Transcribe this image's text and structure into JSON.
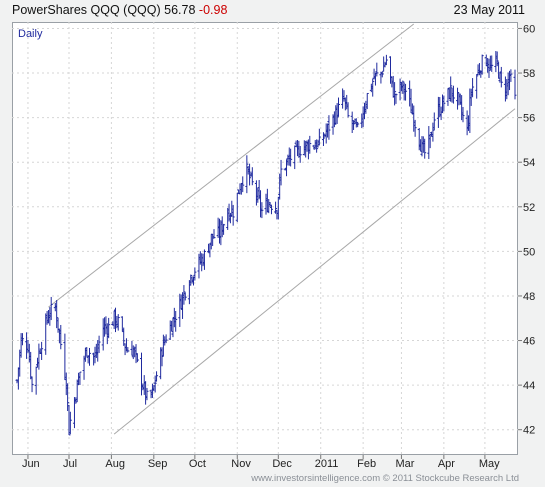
{
  "header": {
    "name": "PowerShares QQQ (QQQ)",
    "last": "56.78",
    "change": "-0.98",
    "date": "23 May 2011"
  },
  "periodicity": "Daily",
  "footer": {
    "site": "www.investorsintelligence.com",
    "copyright": "© 2011 Stockcube Research Ltd"
  },
  "colors": {
    "bars": "#1f2a9e",
    "channel": "#a8a8a8",
    "grid": "#d6d6d6",
    "change_negative": "#cc0000"
  },
  "chart_data": {
    "type": "ohlc",
    "title": "PowerShares QQQ (QQQ)",
    "ylim": [
      41,
      60.2
    ],
    "yticks": [
      42,
      44,
      46,
      48,
      50,
      52,
      54,
      56,
      58,
      60
    ],
    "xticks": [
      "Jun",
      "Jul",
      "Aug",
      "Sep",
      "Oct",
      "Nov",
      "Dec",
      "2011",
      "Feb",
      "Mar",
      "Apr",
      "May"
    ],
    "grid": true,
    "series": [
      {
        "name": "QQQ",
        "anchors": [
          [
            "2010-05-24",
            44.2
          ],
          [
            "2010-05-27",
            46.0
          ],
          [
            "2010-06-01",
            45.8
          ],
          [
            "2010-06-04",
            44.0
          ],
          [
            "2010-06-08",
            45.2
          ],
          [
            "2010-06-16",
            47.2
          ],
          [
            "2010-06-21",
            47.5
          ],
          [
            "2010-06-29",
            44.2
          ],
          [
            "2010-07-01",
            42.0
          ],
          [
            "2010-07-02",
            42.4
          ],
          [
            "2010-07-09",
            44.6
          ],
          [
            "2010-07-14",
            45.6
          ],
          [
            "2010-07-20",
            45.2
          ],
          [
            "2010-07-26",
            46.6
          ],
          [
            "2010-07-30",
            46.6
          ],
          [
            "2010-08-03",
            47.0
          ],
          [
            "2010-08-06",
            46.8
          ],
          [
            "2010-08-12",
            45.6
          ],
          [
            "2010-08-17",
            45.6
          ],
          [
            "2010-08-24",
            44.0
          ],
          [
            "2010-08-27",
            43.4
          ],
          [
            "2010-08-31",
            43.6
          ],
          [
            "2010-09-07",
            45.6
          ],
          [
            "2010-09-10",
            46.2
          ],
          [
            "2010-09-20",
            47.6
          ],
          [
            "2010-09-27",
            48.8
          ],
          [
            "2010-10-01",
            49.2
          ],
          [
            "2010-10-08",
            49.8
          ],
          [
            "2010-10-13",
            50.6
          ],
          [
            "2010-10-19",
            50.8
          ],
          [
            "2010-10-25",
            51.8
          ],
          [
            "2010-10-29",
            51.8
          ],
          [
            "2010-11-04",
            53.2
          ],
          [
            "2010-11-08",
            53.6
          ],
          [
            "2010-11-12",
            53.0
          ],
          [
            "2010-11-16",
            52.4
          ],
          [
            "2010-11-19",
            51.8
          ],
          [
            "2010-11-24",
            52.2
          ],
          [
            "2010-11-30",
            52.0
          ],
          [
            "2010-12-03",
            53.6
          ],
          [
            "2010-12-10",
            54.2
          ],
          [
            "2010-12-17",
            54.6
          ],
          [
            "2010-12-23",
            54.8
          ],
          [
            "2010-12-31",
            54.8
          ],
          [
            "2011-01-07",
            55.6
          ],
          [
            "2011-01-14",
            56.4
          ],
          [
            "2011-01-18",
            56.8
          ],
          [
            "2011-01-21",
            56.0
          ],
          [
            "2011-01-28",
            55.4
          ],
          [
            "2011-02-04",
            57.0
          ],
          [
            "2011-02-09",
            57.8
          ],
          [
            "2011-02-14",
            58.0
          ],
          [
            "2011-02-18",
            58.6
          ],
          [
            "2011-02-22",
            57.4
          ],
          [
            "2011-02-24",
            57.0
          ],
          [
            "2011-03-01",
            57.4
          ],
          [
            "2011-03-04",
            57.2
          ],
          [
            "2011-03-10",
            56.0
          ],
          [
            "2011-03-16",
            54.6
          ],
          [
            "2011-03-18",
            54.4
          ],
          [
            "2011-03-22",
            55.0
          ],
          [
            "2011-03-25",
            56.0
          ],
          [
            "2011-03-31",
            56.6
          ],
          [
            "2011-04-06",
            57.2
          ],
          [
            "2011-04-11",
            56.8
          ],
          [
            "2011-04-15",
            56.0
          ],
          [
            "2011-04-18",
            55.4
          ],
          [
            "2011-04-21",
            57.2
          ],
          [
            "2011-04-28",
            58.4
          ],
          [
            "2011-05-02",
            58.6
          ],
          [
            "2011-05-05",
            58.2
          ],
          [
            "2011-05-10",
            58.4
          ],
          [
            "2011-05-13",
            57.4
          ],
          [
            "2011-05-17",
            57.4
          ],
          [
            "2011-05-19",
            57.9
          ],
          [
            "2011-05-23",
            56.8
          ]
        ]
      }
    ],
    "channel": {
      "upper": [
        [
          "2010-06-16",
          47.5
        ],
        [
          "2011-03-10",
          60.2
        ]
      ],
      "lower": [
        [
          "2010-08-03",
          41.8
        ],
        [
          "2011-05-23",
          56.4
        ]
      ]
    }
  }
}
